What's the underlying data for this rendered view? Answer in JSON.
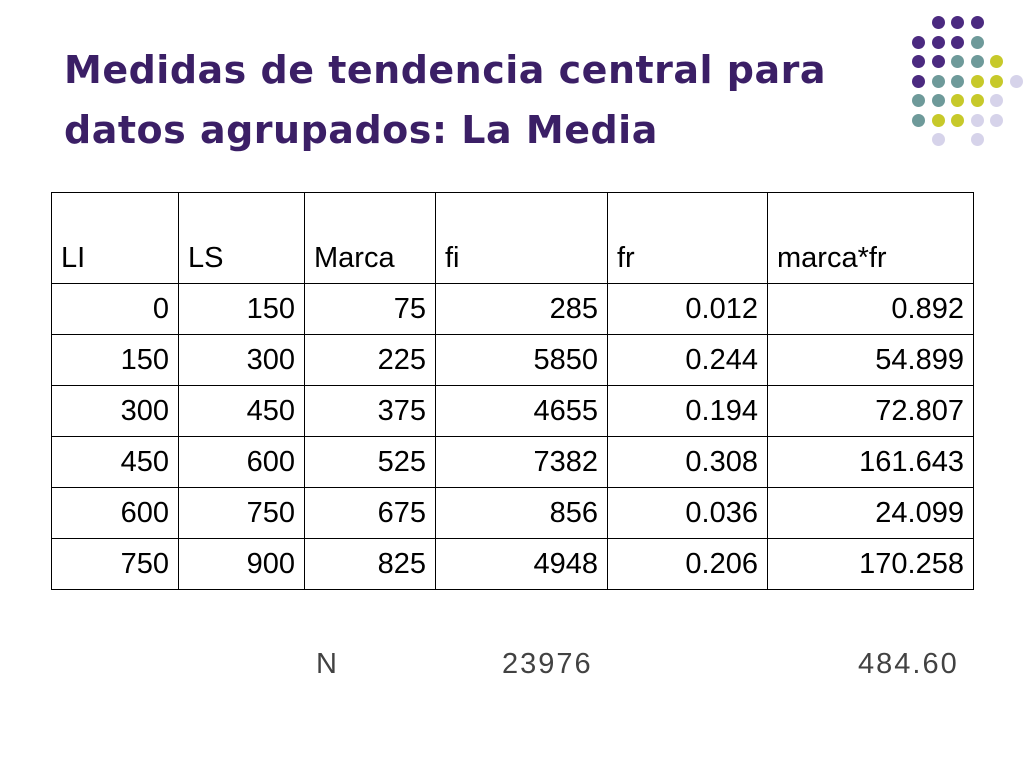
{
  "slide": {
    "title_line1": "Medidas de tendencia central para",
    "title_line2": "datos agrupados: La Media"
  },
  "decoration": {
    "dot_colors": {
      "purple": "#4b2a80",
      "teal": "#6e9a9a",
      "olive": "#c7c92a",
      "lavender": "#d6d3ea"
    }
  },
  "table": {
    "headers": [
      "LI",
      "LS",
      "Marca",
      "fi",
      "fr",
      "marca*fr"
    ],
    "rows": [
      [
        "0",
        "150",
        "75",
        "285",
        "0.012",
        "0.892"
      ],
      [
        "150",
        "300",
        "225",
        "5850",
        "0.244",
        "54.899"
      ],
      [
        "300",
        "450",
        "375",
        "4655",
        "0.194",
        "72.807"
      ],
      [
        "450",
        "600",
        "525",
        "7382",
        "0.308",
        "161.643"
      ],
      [
        "600",
        "750",
        "675",
        "856",
        "0.036",
        "24.099"
      ],
      [
        "750",
        "900",
        "825",
        "4948",
        "0.206",
        "170.258"
      ]
    ]
  },
  "summary": {
    "n_label": "N",
    "total_fi": "23976",
    "mean": "484.60"
  }
}
